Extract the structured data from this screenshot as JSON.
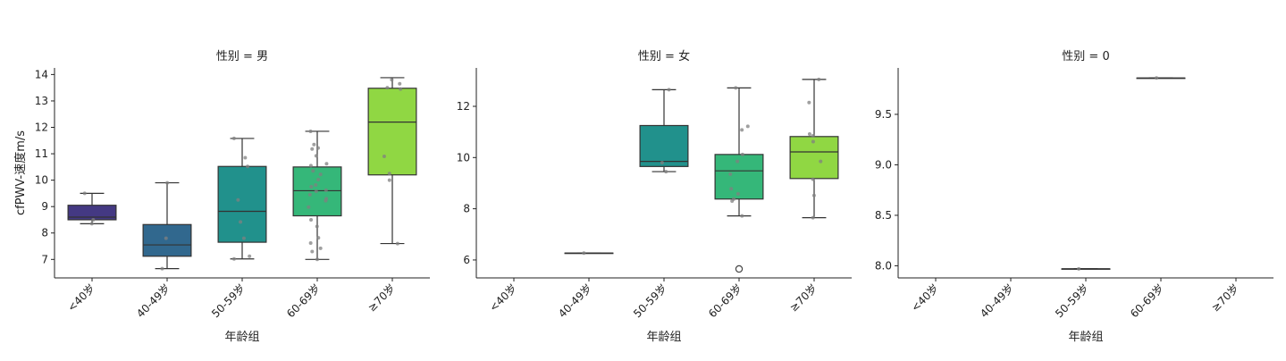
{
  "chart_data": {
    "type": "box",
    "title": "",
    "layout": "facet-columns",
    "xlabel": "年龄组",
    "ylabel": "cfPWV-速度m/s",
    "categories": [
      "<40岁",
      "40-49岁",
      "50-59岁",
      "60-69岁",
      "≥70岁"
    ],
    "category_colors": [
      "#443983",
      "#31688e",
      "#21918c",
      "#35b779",
      "#90d743"
    ],
    "grid": false,
    "panels": [
      {
        "title": "性别 = 男",
        "ylim": [
          6.3,
          14.25
        ],
        "yticks": [
          7,
          8,
          9,
          10,
          11,
          12,
          13,
          14
        ],
        "ytick_labels": [
          "7",
          "8",
          "9",
          "10",
          "11",
          "12",
          "13",
          "14"
        ],
        "boxes": [
          {
            "category": "<40岁",
            "min": 8.35,
            "q1": 8.5,
            "median": 8.6,
            "q3": 9.05,
            "max": 9.5,
            "outliers": [],
            "points": [
              8.35,
              8.5,
              9.5
            ]
          },
          {
            "category": "40-49岁",
            "min": 6.65,
            "q1": 7.12,
            "median": 7.55,
            "q3": 8.32,
            "max": 9.9,
            "outliers": [],
            "points": [
              6.65,
              7.8,
              9.9
            ]
          },
          {
            "category": "50-59岁",
            "min": 7.02,
            "q1": 7.65,
            "median": 8.82,
            "q3": 10.52,
            "max": 11.58,
            "outliers": [],
            "points": [
              7.02,
              7.12,
              7.8,
              8.42,
              9.25,
              10.52,
              10.85,
              11.58
            ]
          },
          {
            "category": "60-69岁",
            "min": 7.0,
            "q1": 8.65,
            "median": 9.6,
            "q3": 10.5,
            "max": 11.85,
            "outliers": [],
            "points": [
              7.0,
              7.3,
              7.42,
              7.62,
              7.82,
              8.25,
              8.5,
              8.98,
              9.22,
              9.3,
              9.45,
              9.58,
              9.62,
              9.75,
              9.82,
              10.02,
              10.22,
              10.35,
              10.55,
              10.62,
              10.92,
              11.18,
              11.22,
              11.35,
              11.85
            ]
          },
          {
            "category": "≥70岁",
            "min": 7.6,
            "q1": 10.2,
            "median": 12.2,
            "q3": 13.48,
            "max": 13.88,
            "outliers": [],
            "points": [
              7.6,
              10.0,
              10.25,
              10.9,
              13.45,
              13.5,
              13.65,
              13.8
            ]
          }
        ]
      },
      {
        "title": "性别 = 女",
        "ylim": [
          5.3,
          13.5
        ],
        "yticks": [
          6,
          8,
          10,
          12
        ],
        "ytick_labels": [
          "6",
          "8",
          "10",
          "12"
        ],
        "boxes": [
          {
            "category": "40-49岁",
            "min": 6.27,
            "q1": 6.27,
            "median": 6.27,
            "q3": 6.27,
            "max": 6.27,
            "outliers": [],
            "points": [
              6.27
            ]
          },
          {
            "category": "50-59岁",
            "min": 9.45,
            "q1": 9.65,
            "median": 9.85,
            "q3": 11.25,
            "max": 12.65,
            "outliers": [],
            "points": [
              9.45,
              9.8,
              12.65
            ]
          },
          {
            "category": "60-69岁",
            "min": 7.72,
            "q1": 8.38,
            "median": 9.48,
            "q3": 10.12,
            "max": 12.72,
            "outliers": [
              5.65
            ],
            "points": [
              7.72,
              8.3,
              8.38,
              8.58,
              8.78,
              9.35,
              9.85,
              10.12,
              11.08,
              11.22,
              12.72
            ]
          },
          {
            "category": "≥70岁",
            "min": 7.65,
            "q1": 9.18,
            "median": 10.22,
            "q3": 10.82,
            "max": 13.05,
            "outliers": [],
            "points": [
              7.65,
              8.52,
              9.15,
              9.85,
              10.62,
              10.85,
              10.92,
              12.15,
              13.05
            ]
          }
        ]
      },
      {
        "title": "性别 = 0",
        "ylim": [
          7.88,
          9.96
        ],
        "yticks": [
          8.0,
          8.5,
          9.0,
          9.5
        ],
        "ytick_labels": [
          "8.0",
          "8.5",
          "9.0",
          "9.5"
        ],
        "boxes": [
          {
            "category": "50-59岁",
            "min": 7.97,
            "q1": 7.97,
            "median": 7.97,
            "q3": 7.97,
            "max": 7.97,
            "outliers": [],
            "points": [
              7.97
            ]
          },
          {
            "category": "60-69岁",
            "min": 9.86,
            "q1": 9.86,
            "median": 9.86,
            "q3": 9.86,
            "max": 9.86,
            "outliers": [],
            "points": [
              9.86
            ]
          }
        ]
      }
    ]
  }
}
